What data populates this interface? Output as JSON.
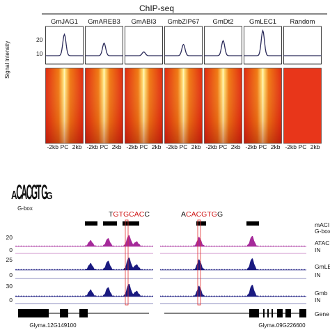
{
  "figure": {
    "chip_seq_title": "ChIP-seq",
    "ylabel": "Signal Intensity",
    "columns": [
      {
        "label": "GmJAG1",
        "peak": 0.85
      },
      {
        "label": "GmAREB3",
        "peak": 0.5
      },
      {
        "label": "GmABI3",
        "peak": 0.15
      },
      {
        "label": "GmbZIP67",
        "peak": 0.45
      },
      {
        "label": "GmDt2",
        "peak": 0.6
      },
      {
        "label": "GmLEC1",
        "peak": 1.0
      },
      {
        "label": "Random",
        "peak": 0.0
      }
    ],
    "y_ticks": [
      "20",
      "10"
    ],
    "x_ticks": [
      "-2kb",
      "PC",
      "2kb"
    ],
    "motif": {
      "logo_text": "ACACGTGG",
      "label": "G-box"
    },
    "seq_left": {
      "prefix": "T",
      "core": "GTGCAC",
      "suffix": "C"
    },
    "seq_right": {
      "prefix": "A",
      "core": "CACGTG",
      "suffix": "G"
    },
    "tracks": [
      {
        "label": "mACI",
        "sub": "G-box",
        "kind": "boxes",
        "color": "#000000",
        "scale": ""
      },
      {
        "label": "ATAC",
        "kind": "signal",
        "color": "#a52a9a",
        "scale": "20"
      },
      {
        "label": "IN",
        "kind": "flat",
        "color": "#a52a9a",
        "scale": "0"
      },
      {
        "label": "GmLE",
        "kind": "signal",
        "color": "#1a1a80",
        "scale": "25"
      },
      {
        "label": "IN",
        "kind": "flat",
        "color": "#1a1a80",
        "scale": "0"
      },
      {
        "label": "Gmb",
        "kind": "signal",
        "color": "#1a1a80",
        "scale": "30"
      },
      {
        "label": "IN",
        "kind": "flat",
        "color": "#1a1a80",
        "scale": "0"
      },
      {
        "label": "Gene",
        "kind": "gene",
        "color": "#000000",
        "scale": ""
      }
    ],
    "genes": [
      "Glyma.12G149100",
      "Glyma.09G226600"
    ],
    "colors": {
      "peak_line": "#2b2b5a",
      "heat_high": "#fff3a0",
      "heat_low": "#d41a1a",
      "highlight": "#e23030",
      "seq_red": "#d01818"
    }
  }
}
